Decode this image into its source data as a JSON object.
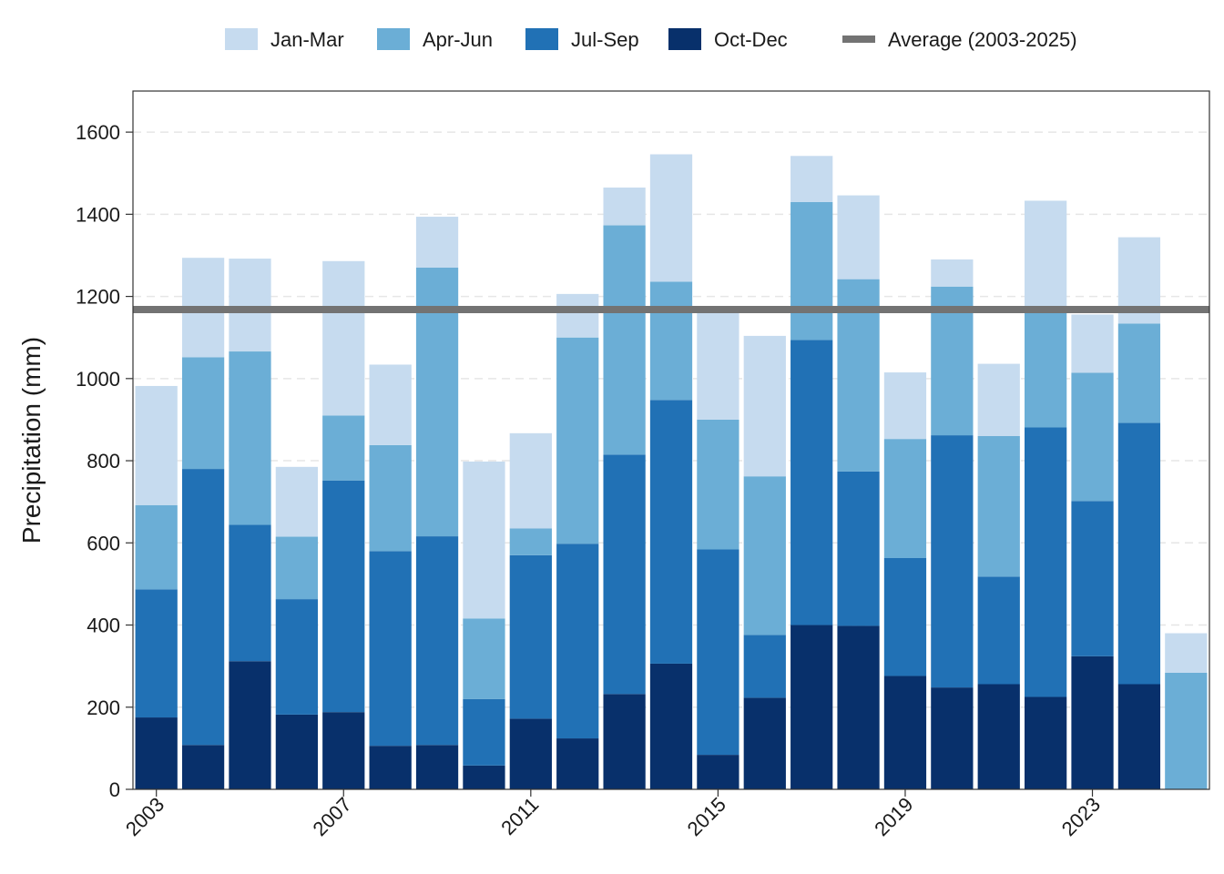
{
  "chart_data": {
    "type": "bar",
    "stacked": true,
    "title": "",
    "xlabel": "",
    "ylabel": "Precipitation (mm)",
    "ylim": [
      0,
      1700
    ],
    "xlim": [
      2002.5,
      2025.5
    ],
    "y_ticks": [
      0,
      200,
      400,
      600,
      800,
      1000,
      1200,
      1400,
      1600
    ],
    "x_ticks": [
      2003,
      2007,
      2011,
      2015,
      2019,
      2023
    ],
    "x_tick_labels": [
      "2003",
      "2007",
      "2011",
      "2015",
      "2019",
      "2023"
    ],
    "grid": "horizontal dashed",
    "legend_position": "top",
    "years": [
      2003,
      2004,
      2005,
      2006,
      2007,
      2008,
      2009,
      2010,
      2011,
      2012,
      2013,
      2014,
      2015,
      2016,
      2017,
      2018,
      2019,
      2020,
      2021,
      2022,
      2023,
      2024,
      2025
    ],
    "series": [
      {
        "name": "Oct-Dec",
        "color": "#08306b",
        "values": [
          175,
          108,
          312,
          182,
          188,
          106,
          108,
          58,
          172,
          124,
          232,
          306,
          84,
          223,
          400,
          398,
          276,
          248,
          256,
          225,
          324,
          256,
          0
        ]
      },
      {
        "name": "Jul-Sep",
        "color": "#2171b5",
        "values": [
          312,
          672,
          332,
          281,
          564,
          474,
          508,
          162,
          398,
          474,
          583,
          642,
          500,
          153,
          694,
          376,
          287,
          614,
          262,
          656,
          378,
          636,
          0
        ]
      },
      {
        "name": "Apr-Jun",
        "color": "#6baed6",
        "values": [
          205,
          272,
          422,
          152,
          158,
          258,
          654,
          196,
          65,
          502,
          558,
          288,
          316,
          386,
          336,
          468,
          290,
          362,
          342,
          282,
          312,
          242,
          284
        ]
      },
      {
        "name": "Jan-Mar",
        "color": "#c6dbef",
        "values": [
          290,
          242,
          226,
          170,
          376,
          196,
          124,
          382,
          232,
          106,
          92,
          310,
          262,
          342,
          112,
          204,
          162,
          66,
          176,
          270,
          142,
          210,
          96
        ]
      }
    ],
    "average_line": {
      "name": "Average (2003-2025)",
      "value": 1168,
      "color": "#737373"
    },
    "legend": {
      "items": [
        {
          "label": "Jan-Mar",
          "color": "#c6dbef",
          "kind": "box"
        },
        {
          "label": "Apr-Jun",
          "color": "#6baed6",
          "kind": "box"
        },
        {
          "label": "Jul-Sep",
          "color": "#2171b5",
          "kind": "box"
        },
        {
          "label": "Oct-Dec",
          "color": "#08306b",
          "kind": "box"
        },
        {
          "label": "Average (2003-2025)",
          "color": "#737373",
          "kind": "line"
        }
      ]
    }
  }
}
